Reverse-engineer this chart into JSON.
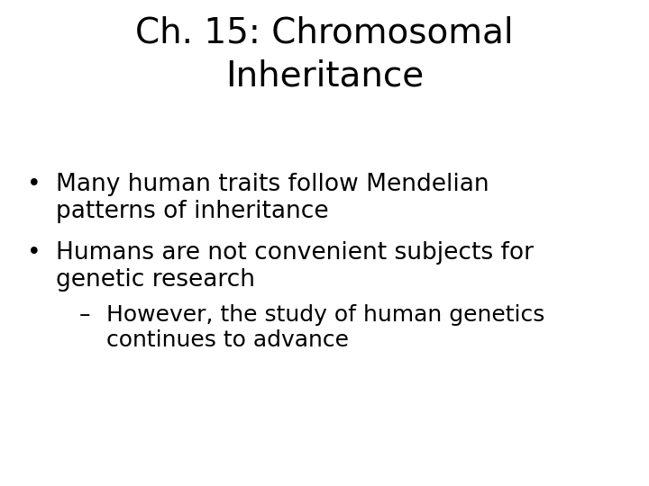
{
  "title_line1": "Ch. 15: Chromosomal",
  "title_line2": "Inheritance",
  "title_fontsize": 28,
  "title_color": "#000000",
  "background_color": "#ffffff",
  "bullet1_bullet": "•",
  "bullet1_text1": "Many human traits follow Mendelian",
  "bullet1_text2": "patterns of inheritance",
  "bullet2_bullet": "•",
  "bullet2_text1": "Humans are not convenient subjects for",
  "bullet2_text2": "genetic research",
  "sub1_bullet": "–",
  "sub1_text1": "However, the study of human genetics",
  "sub1_text2": "continues to advance",
  "bullet_fontsize": 19,
  "sub_fontsize": 18,
  "figwidth": 7.2,
  "figheight": 5.4,
  "dpi": 100
}
